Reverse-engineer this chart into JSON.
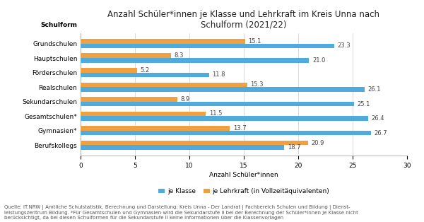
{
  "title": "Anzahl Schüler*innen je Klasse und Lehrkraft im Kreis Unna nach\nSchulform (2021/22)",
  "ylabel_label": "Schulform",
  "xlabel": "Anzahl Schüler*innen",
  "categories": [
    "Grundschulen",
    "Hauptschulen",
    "Förderschulen",
    "Realschulen",
    "Sekundarschulen",
    "Gesamtschulen*",
    "Gymnasien*",
    "Berufskollegs"
  ],
  "je_klasse": [
    23.3,
    21.0,
    11.8,
    26.1,
    25.1,
    26.4,
    26.7,
    18.7
  ],
  "je_lehrkraft": [
    15.1,
    8.3,
    5.2,
    15.3,
    8.9,
    11.5,
    13.7,
    20.9
  ],
  "color_klasse": "#4eabdc",
  "color_lehrkraft": "#f0a040",
  "xlim": [
    0,
    30
  ],
  "xticks": [
    0,
    5,
    10,
    15,
    20,
    25,
    30
  ],
  "legend_klasse": "je Klasse",
  "legend_lehrkraft": "je Lehrkraft (in Vollzeitäquivalenten)",
  "footnote_line1": "Quelle: IT.NRW | Amtliche Schulstatistik, Berechnung und Darstellung: Kreis Unna - Der Landrat | Fachbereich Schulen und Bildung | Dienst-",
  "footnote_line2": "leistungszentrum Bildung. *Für Gesamtschulen und Gymnasien wird die Sekundarstufe II bei der Berechnung der Schüler*innen je Klasse nicht",
  "footnote_line3": "berücksichtigt, da bei diesen Schulformen für die Sekundarstufe II keine Informationen über die Klassenvorlagen",
  "bar_height": 0.32,
  "title_fontsize": 8.5,
  "label_fontsize": 6.5,
  "tick_fontsize": 6.5,
  "footnote_fontsize": 5.0,
  "value_fontsize": 6.0,
  "background_color": "#ffffff"
}
